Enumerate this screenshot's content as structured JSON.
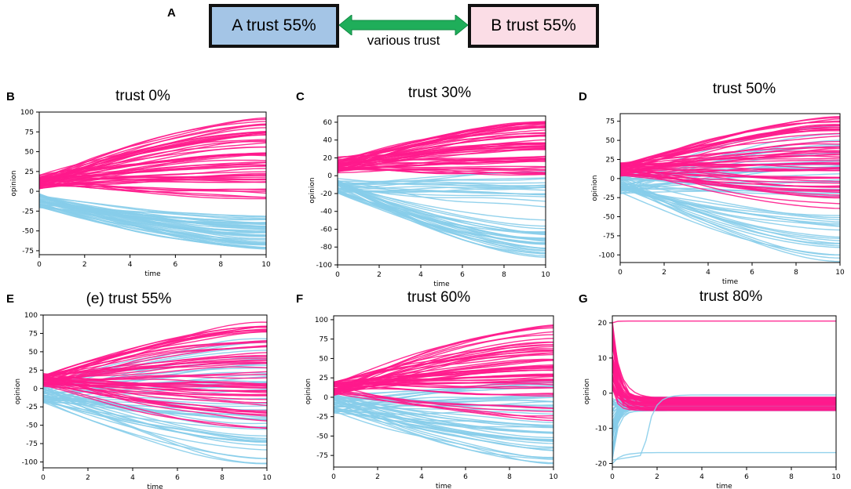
{
  "colors": {
    "groupA": "#87cdea",
    "groupB": "#ff1a8c",
    "boxA": "#a4c5e6",
    "boxB": "#fbdde6",
    "arrow": "#1fae5a"
  },
  "header": {
    "panel_label": "A",
    "box_a": "A trust 55%",
    "box_b": "B trust 55%",
    "arrow_caption": "various trust"
  },
  "chart_data": [
    {
      "panel": "B",
      "title": "trust 0%",
      "type": "line",
      "xlabel": "time",
      "ylabel": "opinion",
      "xlim": [
        0,
        10
      ],
      "ylim": [
        -80,
        100
      ],
      "x_ticks": [
        0,
        2,
        4,
        6,
        8,
        10
      ],
      "y_ticks": [
        -75,
        -50,
        -25,
        0,
        25,
        50,
        75,
        100
      ],
      "series": [
        {
          "name": "group B (pink)",
          "start_range": [
            3,
            20
          ],
          "end_range": [
            -18,
            92
          ],
          "count": 55
        },
        {
          "name": "group A (blue)",
          "start_range": [
            -20,
            -3
          ],
          "end_range": [
            -78,
            -30
          ],
          "count": 45
        }
      ]
    },
    {
      "panel": "C",
      "title": "trust 30%",
      "type": "line",
      "xlabel": "time",
      "ylabel": "opinion",
      "xlim": [
        0,
        10
      ],
      "ylim": [
        -100,
        67
      ],
      "x_ticks": [
        0,
        2,
        4,
        6,
        8,
        10
      ],
      "y_ticks": [
        -100,
        -80,
        -60,
        -40,
        -20,
        0,
        20,
        40,
        60
      ],
      "series": [
        {
          "name": "group B (pink)",
          "start_range": [
            3,
            20
          ],
          "end_range": [
            0,
            65
          ],
          "count": 55
        },
        {
          "name": "group A (blue)",
          "start_range": [
            -20,
            -3
          ],
          "end_range": [
            -92,
            5
          ],
          "count": 45
        }
      ]
    },
    {
      "panel": "D",
      "title": "trust 50%",
      "type": "line",
      "xlabel": "time",
      "ylabel": "opinion",
      "xlim": [
        0,
        10
      ],
      "ylim": [
        -110,
        85
      ],
      "x_ticks": [
        0,
        2,
        4,
        6,
        8,
        10
      ],
      "y_ticks": [
        -100,
        -75,
        -50,
        -25,
        0,
        25,
        50,
        75
      ],
      "series": [
        {
          "name": "group B (pink)",
          "start_range": [
            3,
            20
          ],
          "end_range": [
            -40,
            82
          ],
          "count": 55
        },
        {
          "name": "group A (blue)",
          "start_range": [
            -20,
            5
          ],
          "end_range": [
            -108,
            70
          ],
          "count": 45
        }
      ]
    },
    {
      "panel": "E",
      "title": "(e) trust 55%",
      "type": "line",
      "xlabel": "time",
      "ylabel": "opinion",
      "xlim": [
        0,
        10
      ],
      "ylim": [
        -108,
        100
      ],
      "x_ticks": [
        0,
        2,
        4,
        6,
        8,
        10
      ],
      "y_ticks": [
        -100,
        -75,
        -50,
        -25,
        0,
        25,
        50,
        75,
        100
      ],
      "series": [
        {
          "name": "group B (pink)",
          "start_range": [
            3,
            20
          ],
          "end_range": [
            -55,
            90
          ],
          "count": 55
        },
        {
          "name": "group A (blue)",
          "start_range": [
            -20,
            5
          ],
          "end_range": [
            -105,
            75
          ],
          "count": 45
        }
      ]
    },
    {
      "panel": "F",
      "title": "trust 60%",
      "type": "line",
      "xlabel": "time",
      "ylabel": "opinion",
      "xlim": [
        0,
        10
      ],
      "ylim": [
        -90,
        105
      ],
      "x_ticks": [
        0,
        2,
        4,
        6,
        8,
        10
      ],
      "y_ticks": [
        -75,
        -50,
        -25,
        0,
        25,
        50,
        75,
        100
      ],
      "series": [
        {
          "name": "group B (pink)",
          "start_range": [
            3,
            20
          ],
          "end_range": [
            -30,
            97
          ],
          "count": 55
        },
        {
          "name": "group A (blue)",
          "start_range": [
            -20,
            5
          ],
          "end_range": [
            -85,
            25
          ],
          "count": 45
        }
      ]
    },
    {
      "panel": "G",
      "title": "trust 80%",
      "type": "line",
      "xlabel": "time",
      "ylabel": "opinion",
      "xlim": [
        0,
        10
      ],
      "ylim": [
        -21,
        22
      ],
      "x_ticks": [
        0,
        2,
        4,
        6,
        8,
        10
      ],
      "y_ticks": [
        -20,
        -10,
        0,
        10,
        20
      ],
      "series": [
        {
          "name": "group B (pink)",
          "converge_to": -3.5,
          "outlier_end": 20.5
        },
        {
          "name": "group A (blue)",
          "converge_to": -3.5,
          "outlier_ends": [
            -17,
            -0.5
          ]
        }
      ]
    }
  ]
}
